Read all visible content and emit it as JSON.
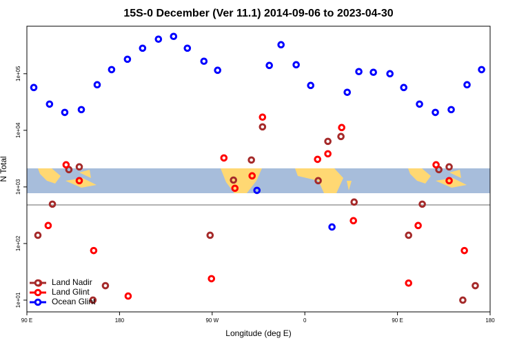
{
  "chart_data": {
    "type": "scatter",
    "title": "15S-0 December (Ver 11.1)   2014-09-06 to 2023-04-30",
    "x_label": "Longitude (deg E)",
    "y_label": "N Total",
    "log_y": true,
    "legend": "bottom-left",
    "xlim": [
      90,
      540
    ],
    "ylim": [
      6.2,
      690000
    ],
    "xticks": [
      {
        "value": 90,
        "label": "90 E"
      },
      180,
      {
        "value": 270,
        "label": "90 W"
      },
      {
        "value": 360,
        "label": "0"
      },
      {
        "value": 450,
        "label": "90 E"
      },
      {
        "value": 540,
        "label": "180"
      }
    ],
    "yticks": [
      {
        "value": 10,
        "label": "1e+01"
      },
      {
        "value": 100,
        "label": "1e+02"
      },
      {
        "value": 1000,
        "label": "1e+03"
      },
      {
        "value": 10000,
        "label": "1e+04"
      },
      {
        "value": 100000,
        "label": "1e+05"
      }
    ],
    "series": [
      {
        "name": "Land Nadir",
        "color": "#a52a2a",
        "x": [
          100.7,
          114.8,
          130.8,
          140.9,
          154.2,
          166.3,
          268,
          290.7,
          308.1,
          318.9,
          373,
          382.4,
          395.1,
          407.9,
          460.8,
          474.1,
          490.2,
          500.2,
          513.5,
          525.6
        ],
        "values": [
          140,
          496,
          2020,
          2260,
          10,
          18,
          140,
          1320,
          2990,
          11500,
          1290,
          6380,
          7770,
          540,
          140,
          496,
          2020,
          2260,
          10,
          18
        ]
      },
      {
        "name": "Land Glint",
        "color": "#ff0000",
        "x": [
          101.4,
          110.7,
          128.1,
          140.9,
          154.9,
          188.4,
          269.3,
          281.4,
          292.1,
          308.8,
          318.9,
          372.4,
          382.4,
          395.8,
          407.2,
          460.8,
          470.1,
          487.5,
          500.2,
          515
        ],
        "values": [
          20,
          208,
          2460,
          1290,
          75,
          11.8,
          23.9,
          3250,
          946,
          1570,
          17100,
          3070,
          3850,
          11200,
          253,
          20,
          208,
          2460,
          1290,
          75
        ]
      },
      {
        "name": "Ocean Glint",
        "color": "#0000ff",
        "x": [
          96.7,
          112,
          126.8,
          142.9,
          158.3,
          172.3,
          187.7,
          202.4,
          217.8,
          232.5,
          245.9,
          262,
          275.3,
          313.5,
          325.5,
          336.9,
          351.6,
          365.7,
          386.4,
          401.2,
          412.5,
          426.6,
          442.7,
          456.1,
          471.4,
          486.8,
          502.2,
          517.6,
          531.7
        ],
        "values": [
          57000,
          29000,
          20700,
          23200,
          63800,
          118000,
          180000,
          282000,
          407000,
          456000,
          282000,
          166000,
          115000,
          869,
          140000,
          325000,
          144000,
          62000,
          196,
          46900,
          109000,
          106000,
          100000,
          57000,
          29000,
          20700,
          23200,
          63800,
          118000
        ]
      }
    ]
  }
}
